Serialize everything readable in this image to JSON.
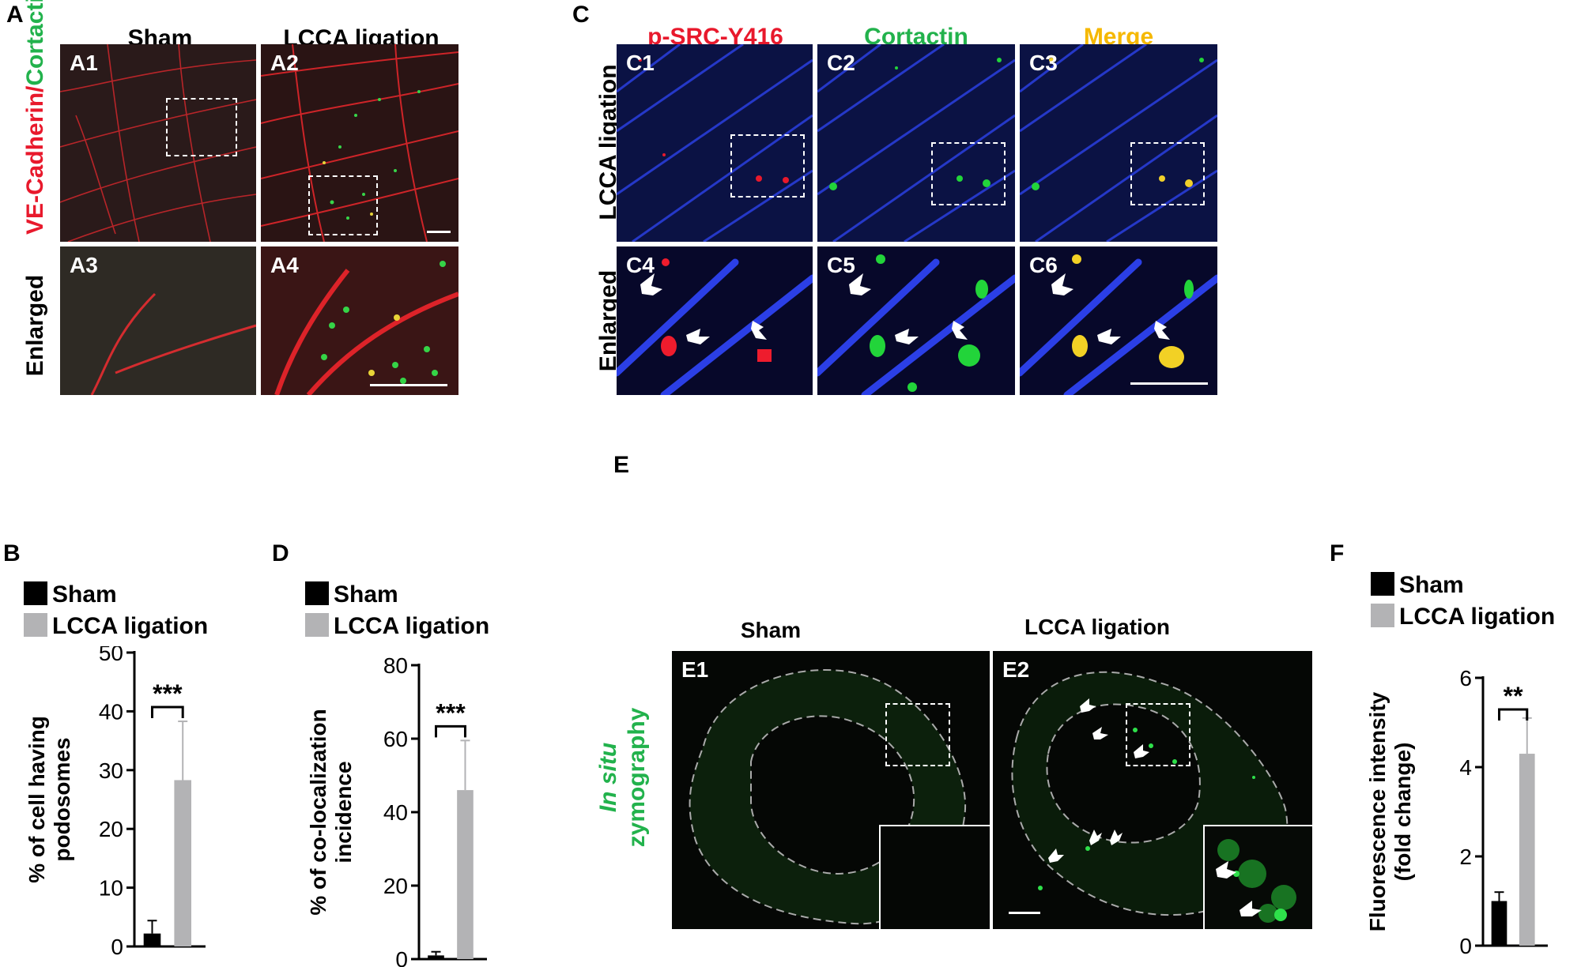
{
  "panel_labels": {
    "A": "A",
    "B": "B",
    "C": "C",
    "D": "D",
    "E": "E",
    "F": "F"
  },
  "panel_a": {
    "col_headers": [
      "Sham",
      "LCCA ligation"
    ],
    "row_label_red": "VE-Cadherin/",
    "row_label_green": "Cortactin",
    "row2_label": "Enlarged",
    "tiles": [
      "A1",
      "A2",
      "A3",
      "A4"
    ]
  },
  "panel_c": {
    "col_headers": [
      "p-SRC-Y416",
      "Cortactin",
      "Merge"
    ],
    "col_colors": [
      "#e8192c",
      "#22b24c",
      "#f5b800"
    ],
    "row1_label": "LCCA ligation",
    "row2_label": "Enlarged",
    "tiles": [
      "C1",
      "C2",
      "C3",
      "C4",
      "C5",
      "C6"
    ]
  },
  "panel_e": {
    "col_headers": [
      "Sham",
      "LCCA ligation"
    ],
    "row_label_1": "In situ",
    "row_label_2": "zymography",
    "tiles": [
      "E1",
      "E2"
    ]
  },
  "chart_data": [
    {
      "panel": "B",
      "type": "bar",
      "categories": [
        "Sham",
        "LCCA ligation"
      ],
      "values": [
        2.2,
        28.3
      ],
      "errors": [
        2.2,
        10.0
      ],
      "colors": [
        "#000000",
        "#b3b3b5"
      ],
      "ylabel_line1": "% of cell having",
      "ylabel_line2": "podosomes",
      "ylim": [
        0,
        50
      ],
      "yticks": [
        0,
        10,
        20,
        30,
        40,
        50
      ],
      "significance": "***",
      "legend": [
        "Sham",
        "LCCA ligation"
      ]
    },
    {
      "panel": "D",
      "type": "bar",
      "categories": [
        "Sham",
        "LCCA ligation"
      ],
      "values": [
        1.0,
        46.0
      ],
      "errors": [
        1.0,
        13.5
      ],
      "colors": [
        "#000000",
        "#b3b3b5"
      ],
      "ylabel_line1": "% of co-localization",
      "ylabel_line2": "incidence",
      "ylim": [
        0,
        80
      ],
      "yticks": [
        0,
        20,
        40,
        60,
        80
      ],
      "significance": "***",
      "legend": [
        "Sham",
        "LCCA ligation"
      ]
    },
    {
      "panel": "F",
      "type": "bar",
      "categories": [
        "Sham",
        "LCCA ligation"
      ],
      "values": [
        1.0,
        4.3
      ],
      "errors": [
        0.2,
        0.8
      ],
      "colors": [
        "#000000",
        "#b3b3b5"
      ],
      "ylabel_line1": "Fluorescence intensity",
      "ylabel_line2": "(fold change)",
      "ylim": [
        0,
        6
      ],
      "yticks": [
        0,
        2,
        4,
        6
      ],
      "significance": "**",
      "legend": [
        "Sham",
        "LCCA ligation"
      ]
    }
  ]
}
